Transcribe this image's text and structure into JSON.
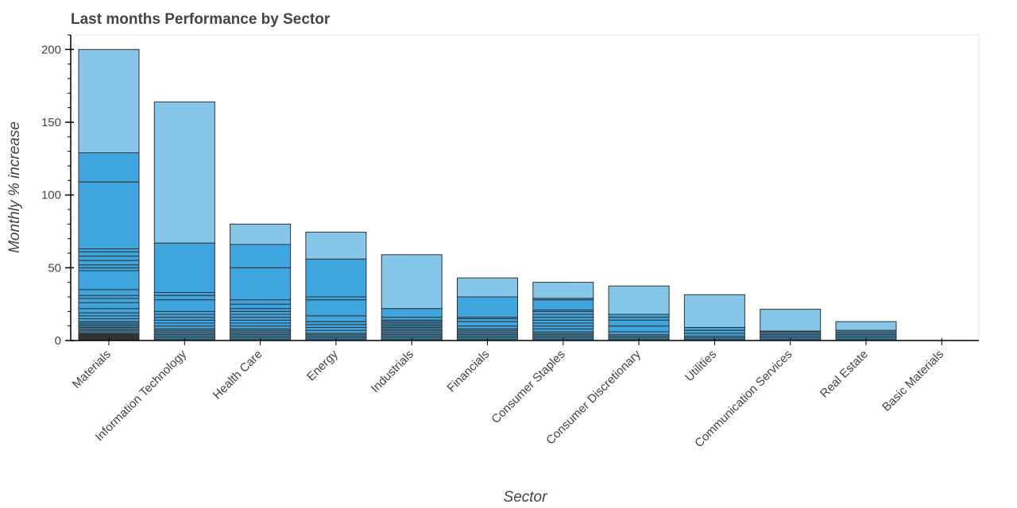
{
  "chart_data": {
    "type": "bar",
    "stacked": true,
    "title": "Last months Performance by Sector",
    "xlabel": "Sector",
    "ylabel": "Monthly % increase",
    "ylim": [
      0,
      210
    ],
    "yticks": [
      0,
      50,
      100,
      150,
      200
    ],
    "grid": false,
    "categories": [
      "Materials",
      "Information Technology",
      "Health Care",
      "Energy",
      "Industrials",
      "Financials",
      "Consumer Staples",
      "Consumer Discretionary",
      "Utilities",
      "Communication Services",
      "Real Estate",
      "Basic Materials"
    ],
    "values": [
      200,
      164,
      80,
      74.5,
      59,
      43,
      40,
      37.5,
      31.5,
      21.5,
      13,
      0
    ],
    "segment_boundaries": [
      [
        0.5,
        1,
        1.5,
        2,
        2.5,
        3,
        3.5,
        4,
        4.5,
        5,
        6,
        7,
        8,
        9,
        10,
        11,
        12,
        13,
        15,
        17,
        19,
        22,
        26,
        29,
        31,
        35,
        48,
        50,
        52,
        55,
        58,
        61,
        63,
        109,
        129,
        200
      ],
      [
        1,
        2,
        3,
        4,
        5,
        6,
        7,
        8,
        10,
        12,
        14,
        16,
        18,
        20,
        28,
        31,
        33,
        67,
        164
      ],
      [
        1,
        2,
        3,
        4,
        5,
        6,
        7,
        8,
        10,
        12,
        14,
        16,
        18,
        20,
        22,
        25,
        28,
        50,
        66,
        80
      ],
      [
        1,
        2,
        3,
        4,
        5,
        7,
        9,
        11,
        13,
        17,
        28,
        30,
        56,
        74.5
      ],
      [
        1,
        2,
        3,
        4,
        5,
        6,
        7,
        8,
        9,
        10,
        11,
        12,
        13,
        14,
        16,
        22,
        59
      ],
      [
        1,
        2,
        3,
        4,
        5,
        6,
        7,
        8,
        10,
        13,
        15,
        16,
        30,
        43
      ],
      [
        1,
        2,
        3,
        4,
        5,
        6,
        8,
        10,
        12,
        14,
        16,
        18,
        20,
        21,
        28,
        29,
        40
      ],
      [
        1,
        2,
        3,
        4,
        6,
        10,
        14,
        16,
        18,
        37.5
      ],
      [
        1,
        2,
        3,
        5,
        7,
        9,
        31.5
      ],
      [
        1,
        2,
        3,
        4,
        5,
        6,
        6.5,
        21.5
      ],
      [
        1,
        2,
        3,
        4,
        5,
        6,
        7,
        13
      ],
      []
    ]
  },
  "colors": {
    "bar_fill": "#3ea5df",
    "bar_fill_light": "#85c6e9",
    "bar_stroke": "#333333",
    "text": "#444444",
    "axis": "#000000"
  }
}
